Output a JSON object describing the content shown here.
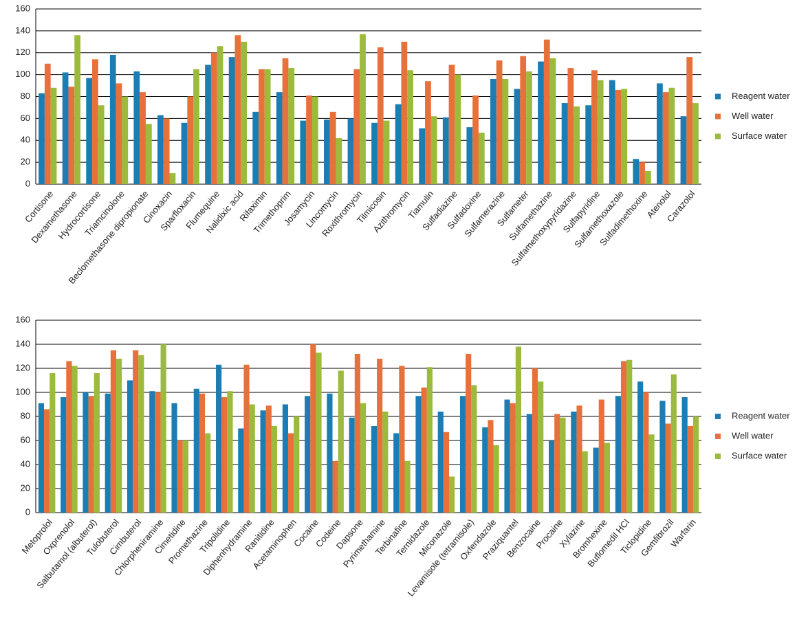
{
  "chart_data": [
    {
      "type": "bar",
      "ylim": [
        0,
        160
      ],
      "yticks": [
        0,
        20,
        40,
        60,
        80,
        100,
        120,
        140,
        160
      ],
      "grid": true,
      "legend": "right",
      "categories": [
        "Cortisone",
        "Dexamethasone",
        "Hydrocortisone",
        "Triamcinolone",
        "Beclomethasone dipropionate",
        "Cinoxacin",
        "Sparfloxacin",
        "Flumequine",
        "Nalidixic acid",
        "Rifaximin",
        "Trimethoprim",
        "Josamycin",
        "Lincomycin",
        "Roxithromycin",
        "Tilmicosin",
        "Azithromycin",
        "Tiamulin",
        "Sulfadiazine",
        "Sulfadoxine",
        "Sulfamerazine",
        "Sulfameter",
        "Sulfamethazine",
        "Sulfamethoxypyridazine",
        "Sulfapyridine",
        "Sulfamethoxazole",
        "Sulfadimethoxine",
        "Atenolol",
        "Carazolol"
      ],
      "series": [
        {
          "name": "Reagent water",
          "color": "#1b7db3",
          "values": [
            83,
            102,
            97,
            118,
            103,
            63,
            56,
            109,
            116,
            66,
            84,
            58,
            59,
            60,
            56,
            73,
            51,
            61,
            52,
            96,
            87,
            112,
            74,
            72,
            95,
            23,
            92,
            62
          ]
        },
        {
          "name": "Well water",
          "color": "#e8703a",
          "values": [
            110,
            89,
            114,
            92,
            84,
            60,
            80,
            120,
            136,
            105,
            115,
            81,
            66,
            105,
            125,
            130,
            94,
            109,
            81,
            113,
            117,
            132,
            106,
            104,
            86,
            20,
            84,
            116
          ]
        },
        {
          "name": "Surface water",
          "color": "#9cbb3c",
          "values": [
            88,
            136,
            72,
            80,
            55,
            10,
            105,
            126,
            130,
            105,
            106,
            80,
            42,
            137,
            58,
            104,
            62,
            100,
            47,
            96,
            103,
            115,
            71,
            95,
            87,
            12,
            88,
            74
          ]
        }
      ]
    },
    {
      "type": "bar",
      "ylim": [
        0,
        160
      ],
      "yticks": [
        0,
        20,
        40,
        60,
        80,
        100,
        120,
        140,
        160
      ],
      "grid": true,
      "legend": "right",
      "categories": [
        "Metoprolol",
        "Oxprenolol",
        "Salbutamol (albuterol)",
        "Tulobuterol",
        "Cimbuterol",
        "Chlorpheniramine",
        "Cimetidine",
        "Promethazine",
        "Tripolidine",
        "Diphenhydramine",
        "Ranitidine",
        "Acetaminophen",
        "Cocaine",
        "Codeine",
        "Dapsone",
        "Pyrimethamine",
        "Terbinafine",
        "Ternidazole",
        "Miconazole",
        "Levamisole (tetramisole)",
        "Oxfendazole",
        "Praziquantel",
        "Benzocaine",
        "Procaine",
        "Xylazine",
        "Bromhexine",
        "Buflomedil HCl",
        "Ticlopidine",
        "Gemfibrozil",
        "Warfarin"
      ],
      "series": [
        {
          "name": "Reagent water",
          "color": "#1b7db3",
          "values": [
            91,
            96,
            100,
            99,
            110,
            101,
            91,
            103,
            123,
            70,
            85,
            90,
            97,
            99,
            79,
            72,
            66,
            97,
            84,
            97,
            71,
            94,
            82,
            60,
            84,
            54,
            97,
            109,
            93,
            96
          ]
        },
        {
          "name": "Well water",
          "color": "#e8703a",
          "values": [
            86,
            126,
            97,
            135,
            135,
            100,
            60,
            99,
            96,
            123,
            89,
            66,
            140,
            43,
            132,
            128,
            122,
            104,
            67,
            132,
            77,
            91,
            120,
            82,
            89,
            94,
            126,
            100,
            74,
            72
          ]
        },
        {
          "name": "Surface water",
          "color": "#9cbb3c",
          "values": [
            116,
            122,
            116,
            128,
            131,
            140,
            60,
            66,
            101,
            90,
            72,
            80,
            133,
            118,
            91,
            84,
            43,
            121,
            30,
            106,
            56,
            138,
            109,
            79,
            51,
            58,
            127,
            65,
            115,
            80
          ]
        }
      ]
    }
  ]
}
